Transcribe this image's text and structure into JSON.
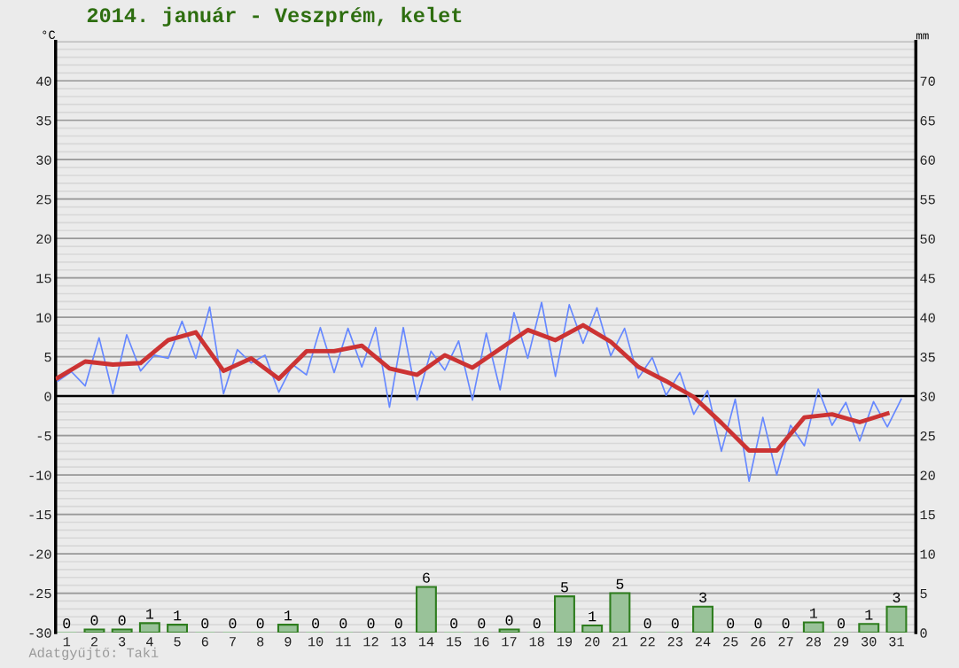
{
  "chart_data": {
    "type": "line",
    "title": "2014. január - Veszprém, kelet",
    "ylabel": "°C",
    "y2label": "mm",
    "annotations": [
      "Adatgyűjtő: Taki"
    ],
    "x": [
      1,
      2,
      3,
      4,
      5,
      6,
      7,
      8,
      9,
      10,
      11,
      12,
      13,
      14,
      15,
      16,
      17,
      18,
      19,
      20,
      21,
      22,
      23,
      24,
      25,
      26,
      27,
      28,
      29,
      30,
      31
    ],
    "xlim": [
      0.6,
      31.7
    ],
    "xticks": [
      1,
      2,
      3,
      4,
      5,
      6,
      7,
      8,
      9,
      10,
      11,
      12,
      13,
      14,
      15,
      16,
      17,
      18,
      19,
      20,
      21,
      22,
      23,
      24,
      25,
      26,
      27,
      28,
      29,
      30,
      31
    ],
    "ylim": [
      -30,
      45
    ],
    "yticks": [
      -30,
      -25,
      -20,
      -15,
      -10,
      -5,
      0,
      5,
      10,
      15,
      20,
      25,
      30,
      35,
      40
    ],
    "y2lim": [
      0,
      75
    ],
    "y2ticks": [
      0,
      5,
      10,
      15,
      20,
      25,
      30,
      35,
      40,
      45,
      50,
      55,
      60,
      65,
      70
    ],
    "grid": "y",
    "ref_lines": [
      {
        "axis": "y",
        "value": 0,
        "color": "#000000"
      }
    ],
    "series": [
      {
        "type": "bar",
        "axis": "y2",
        "color": "#99c299",
        "values": [
          0,
          0.4,
          0.4,
          1.2,
          1.0,
          0,
          0,
          0,
          1.0,
          0,
          0,
          0,
          0,
          5.8,
          0,
          0,
          0.4,
          0,
          4.6,
          0.9,
          5.0,
          0,
          0,
          3.3,
          0,
          0,
          0,
          1.3,
          0,
          1.1,
          3.3
        ],
        "value_labels": [
          "0",
          "0",
          "0",
          "1",
          "1",
          "0",
          "0",
          "0",
          "1",
          "0",
          "0",
          "0",
          "0",
          "6",
          "0",
          "0",
          "0",
          "0",
          "5",
          "1",
          "5",
          "0",
          "0",
          "3",
          "0",
          "0",
          "0",
          "1",
          "0",
          "1",
          "3"
        ]
      },
      {
        "color": "#6688ff",
        "x": [
          0.67,
          1.17,
          1.67,
          2.17,
          2.67,
          3.17,
          3.67,
          4.17,
          4.67,
          5.17,
          5.67,
          6.17,
          6.67,
          7.17,
          7.67,
          8.17,
          8.67,
          9.17,
          9.67,
          10.17,
          10.67,
          11.17,
          11.67,
          12.17,
          12.67,
          13.17,
          13.67,
          14.17,
          14.67,
          15.17,
          15.67,
          16.17,
          16.67,
          17.17,
          17.67,
          18.17,
          18.67,
          19.17,
          19.67,
          20.17,
          20.67,
          21.17,
          21.67,
          22.17,
          22.67,
          23.17,
          23.67,
          24.17,
          24.67,
          25.17,
          25.67,
          26.17,
          26.67,
          27.17,
          27.67,
          28.17,
          28.67,
          29.17,
          29.67,
          30.17,
          30.67,
          31.17
        ],
        "values": [
          1.9,
          3.1,
          1.3,
          7.4,
          0.3,
          7.8,
          3.2,
          5.2,
          4.8,
          9.5,
          4.8,
          11.3,
          0.3,
          5.9,
          4.2,
          5.2,
          0.5,
          4.0,
          2.7,
          8.7,
          3.0,
          8.6,
          3.7,
          8.7,
          -1.4,
          8.7,
          -0.5,
          5.7,
          3.3,
          7.0,
          -0.5,
          8.0,
          0.8,
          10.6,
          4.8,
          11.9,
          2.5,
          11.6,
          6.7,
          11.2,
          5.1,
          8.6,
          2.3,
          4.9,
          0.1,
          3.0,
          -2.3,
          0.7,
          -7.0,
          -0.4,
          -10.8,
          -2.7,
          -10.0,
          -3.7,
          -6.3,
          0.9,
          -3.7,
          -0.8,
          -5.7,
          -0.7,
          -3.9,
          -0.4
        ]
      },
      {
        "color": "#cc3333",
        "x": [
          0.67,
          1.67,
          2.67,
          3.67,
          4.67,
          5.67,
          6.67,
          7.67,
          8.67,
          9.67,
          10.67,
          11.67,
          12.67,
          13.67,
          14.67,
          15.67,
          16.67,
          17.67,
          18.67,
          19.67,
          20.67,
          21.67,
          22.67,
          23.67,
          24.67,
          25.67,
          26.67,
          27.67,
          28.67,
          29.67,
          30.67
        ],
        "values": [
          2.3,
          4.4,
          4.0,
          4.2,
          7.1,
          8.1,
          3.2,
          4.8,
          2.2,
          5.7,
          5.7,
          6.4,
          3.5,
          2.7,
          5.2,
          3.6,
          6.0,
          8.4,
          7.1,
          9.0,
          6.9,
          3.7,
          1.9,
          -0.1,
          -3.4,
          -6.9,
          -6.9,
          -2.7,
          -2.3,
          -3.3,
          -2.2
        ]
      }
    ]
  }
}
